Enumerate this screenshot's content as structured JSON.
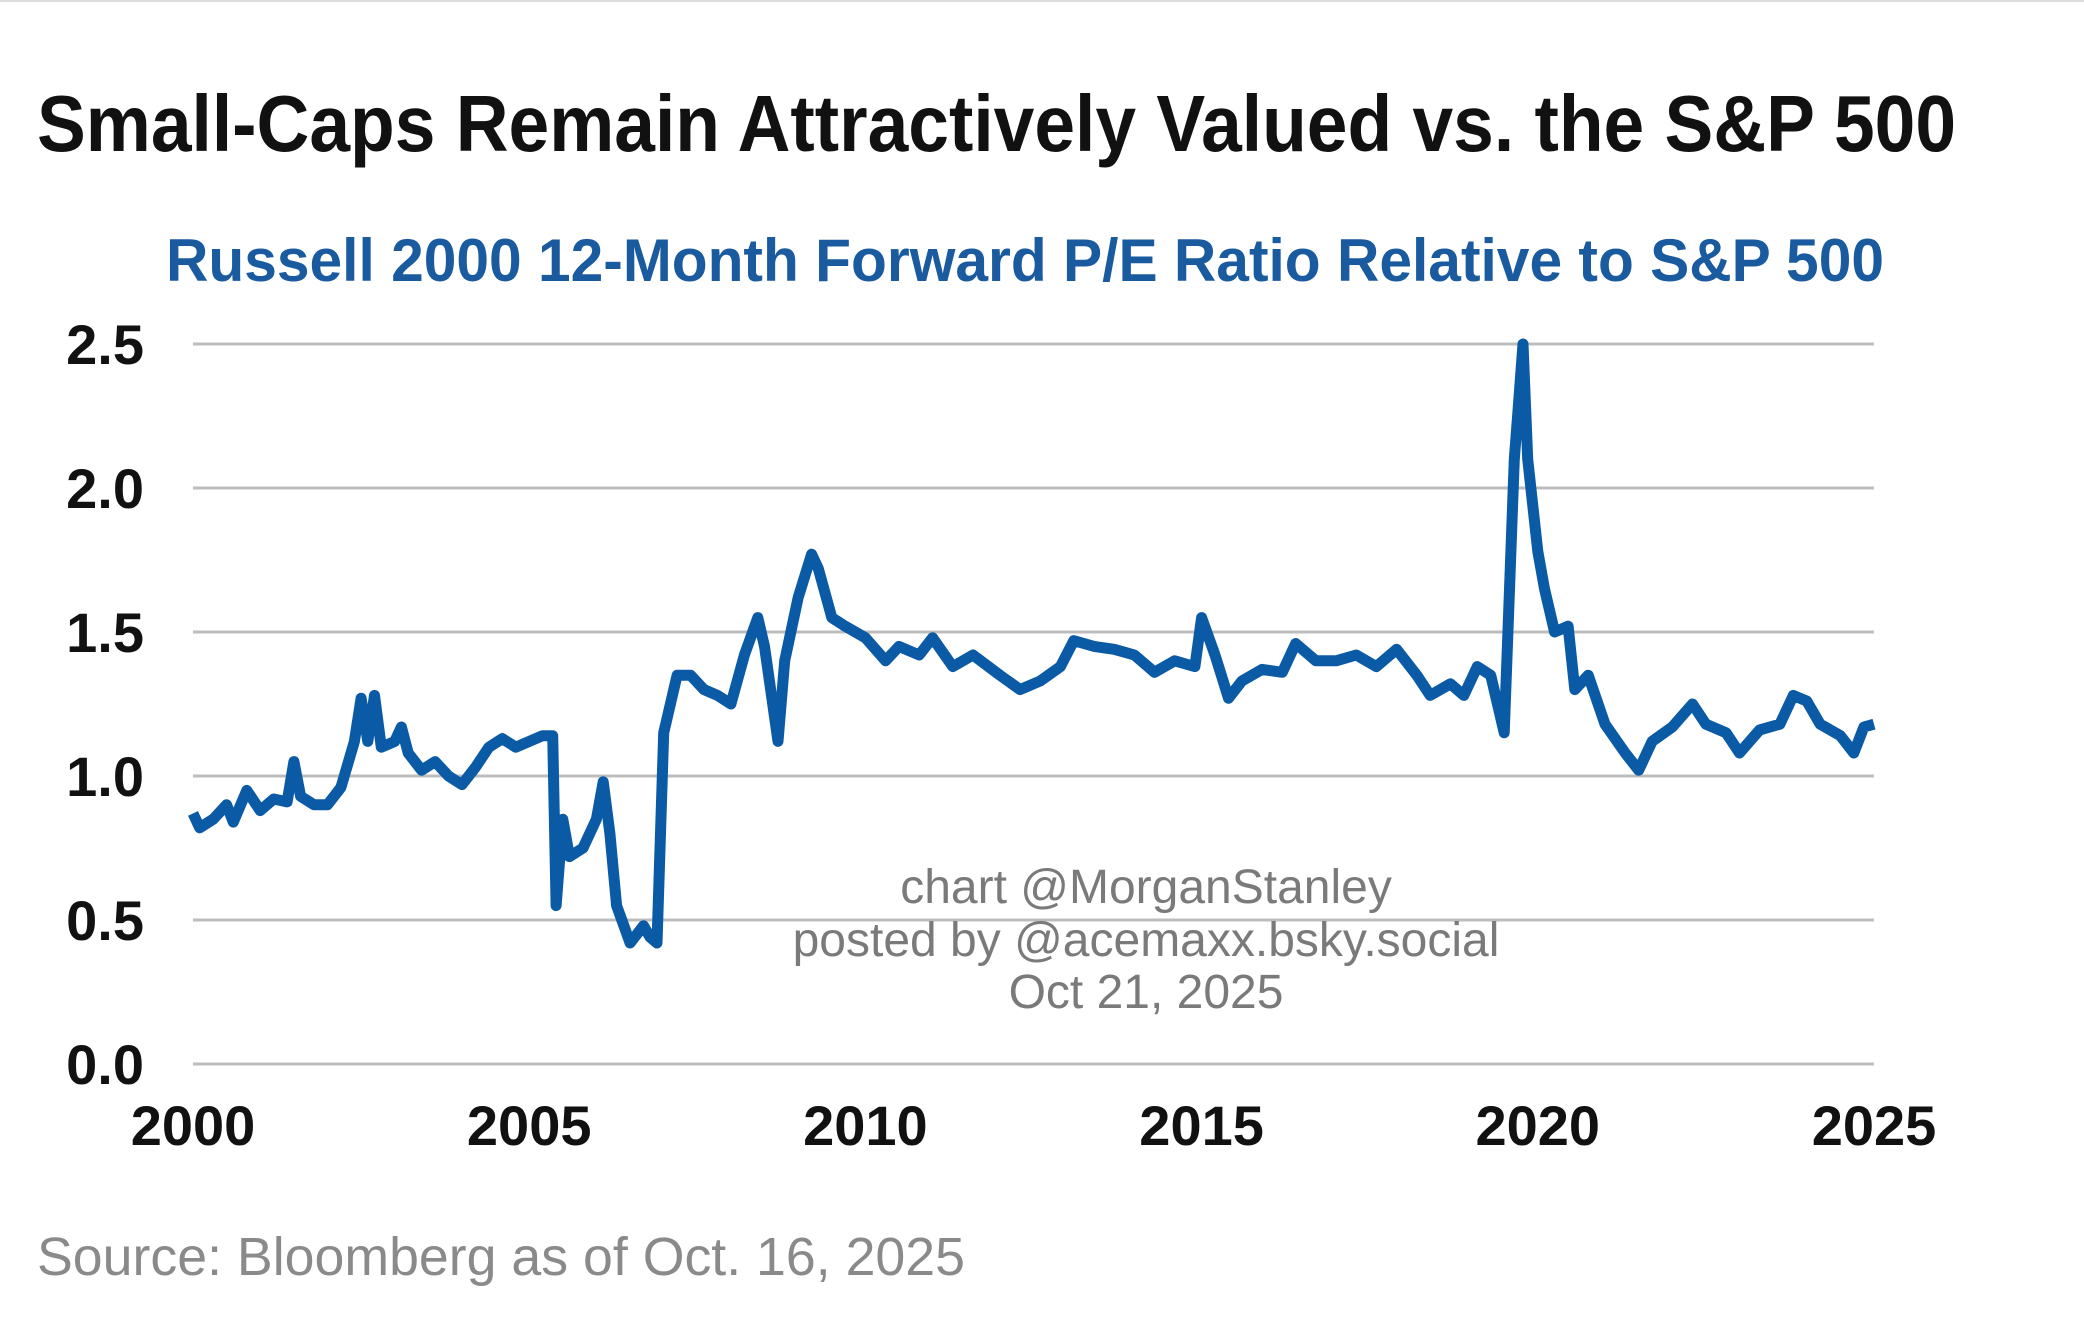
{
  "chart_data": {
    "type": "line",
    "title": "Small-Caps Remain Attractively Valued vs. the S&P 500",
    "subtitle": "Russell 2000 12-Month Forward P/E Ratio Relative to S&P 500",
    "xlabel": "",
    "ylabel": "",
    "xlim": [
      2000,
      2025
    ],
    "ylim": [
      0,
      2.5
    ],
    "grid": true,
    "line_color": "#0b5aa5",
    "x_ticks": [
      "2000",
      "2005",
      "2010",
      "2015",
      "2020",
      "2025"
    ],
    "y_ticks": [
      "0.0",
      "0.5",
      "1.0",
      "1.5",
      "2.0",
      "2.5"
    ],
    "series": [
      {
        "name": "Russell 2000 / S&P 500 forward P/E",
        "points": [
          [
            2000.0,
            0.87
          ],
          [
            2000.1,
            0.82
          ],
          [
            2000.3,
            0.85
          ],
          [
            2000.5,
            0.9
          ],
          [
            2000.6,
            0.84
          ],
          [
            2000.8,
            0.95
          ],
          [
            2001.0,
            0.88
          ],
          [
            2001.2,
            0.92
          ],
          [
            2001.4,
            0.91
          ],
          [
            2001.5,
            1.05
          ],
          [
            2001.6,
            0.93
          ],
          [
            2001.8,
            0.9
          ],
          [
            2002.0,
            0.9
          ],
          [
            2002.2,
            0.96
          ],
          [
            2002.4,
            1.12
          ],
          [
            2002.5,
            1.27
          ],
          [
            2002.6,
            1.12
          ],
          [
            2002.7,
            1.28
          ],
          [
            2002.8,
            1.1
          ],
          [
            2003.0,
            1.12
          ],
          [
            2003.1,
            1.17
          ],
          [
            2003.2,
            1.08
          ],
          [
            2003.4,
            1.02
          ],
          [
            2003.6,
            1.05
          ],
          [
            2003.8,
            1.0
          ],
          [
            2004.0,
            0.97
          ],
          [
            2004.2,
            1.03
          ],
          [
            2004.4,
            1.1
          ],
          [
            2004.6,
            1.13
          ],
          [
            2004.8,
            1.1
          ],
          [
            2005.0,
            1.12
          ],
          [
            2005.2,
            1.14
          ],
          [
            2005.35,
            1.14
          ],
          [
            2005.4,
            0.55
          ],
          [
            2005.5,
            0.85
          ],
          [
            2005.6,
            0.72
          ],
          [
            2005.8,
            0.75
          ],
          [
            2006.0,
            0.85
          ],
          [
            2006.1,
            0.98
          ],
          [
            2006.2,
            0.8
          ],
          [
            2006.3,
            0.55
          ],
          [
            2006.5,
            0.42
          ],
          [
            2006.7,
            0.48
          ],
          [
            2006.8,
            0.44
          ],
          [
            2006.9,
            0.42
          ],
          [
            2007.0,
            1.15
          ],
          [
            2007.2,
            1.35
          ],
          [
            2007.4,
            1.35
          ],
          [
            2007.6,
            1.3
          ],
          [
            2007.8,
            1.28
          ],
          [
            2008.0,
            1.25
          ],
          [
            2008.2,
            1.42
          ],
          [
            2008.4,
            1.55
          ],
          [
            2008.5,
            1.45
          ],
          [
            2008.7,
            1.12
          ],
          [
            2008.8,
            1.4
          ],
          [
            2009.0,
            1.62
          ],
          [
            2009.2,
            1.77
          ],
          [
            2009.3,
            1.72
          ],
          [
            2009.5,
            1.55
          ],
          [
            2009.7,
            1.52
          ],
          [
            2010.0,
            1.48
          ],
          [
            2010.3,
            1.4
          ],
          [
            2010.5,
            1.45
          ],
          [
            2010.8,
            1.42
          ],
          [
            2011.0,
            1.48
          ],
          [
            2011.3,
            1.38
          ],
          [
            2011.6,
            1.42
          ],
          [
            2012.0,
            1.35
          ],
          [
            2012.3,
            1.3
          ],
          [
            2012.6,
            1.33
          ],
          [
            2012.9,
            1.38
          ],
          [
            2013.1,
            1.47
          ],
          [
            2013.4,
            1.45
          ],
          [
            2013.7,
            1.44
          ],
          [
            2014.0,
            1.42
          ],
          [
            2014.3,
            1.36
          ],
          [
            2014.6,
            1.4
          ],
          [
            2014.9,
            1.38
          ],
          [
            2015.0,
            1.55
          ],
          [
            2015.2,
            1.42
          ],
          [
            2015.4,
            1.27
          ],
          [
            2015.6,
            1.33
          ],
          [
            2015.9,
            1.37
          ],
          [
            2016.2,
            1.36
          ],
          [
            2016.4,
            1.46
          ],
          [
            2016.7,
            1.4
          ],
          [
            2017.0,
            1.4
          ],
          [
            2017.3,
            1.42
          ],
          [
            2017.6,
            1.38
          ],
          [
            2017.9,
            1.44
          ],
          [
            2018.2,
            1.35
          ],
          [
            2018.4,
            1.28
          ],
          [
            2018.7,
            1.32
          ],
          [
            2018.9,
            1.28
          ],
          [
            2019.1,
            1.38
          ],
          [
            2019.3,
            1.35
          ],
          [
            2019.5,
            1.15
          ],
          [
            2019.65,
            2.1
          ],
          [
            2019.7,
            2.25
          ],
          [
            2019.78,
            2.5
          ],
          [
            2019.85,
            2.1
          ],
          [
            2020.0,
            1.78
          ],
          [
            2020.1,
            1.65
          ],
          [
            2020.25,
            1.5
          ],
          [
            2020.45,
            1.52
          ],
          [
            2020.55,
            1.3
          ],
          [
            2020.75,
            1.35
          ],
          [
            2021.0,
            1.18
          ],
          [
            2021.3,
            1.08
          ],
          [
            2021.5,
            1.02
          ],
          [
            2021.7,
            1.12
          ],
          [
            2022.0,
            1.17
          ],
          [
            2022.3,
            1.25
          ],
          [
            2022.5,
            1.18
          ],
          [
            2022.8,
            1.15
          ],
          [
            2023.0,
            1.08
          ],
          [
            2023.3,
            1.16
          ],
          [
            2023.6,
            1.18
          ],
          [
            2023.8,
            1.28
          ],
          [
            2024.0,
            1.26
          ],
          [
            2024.2,
            1.18
          ],
          [
            2024.5,
            1.14
          ],
          [
            2024.7,
            1.08
          ],
          [
            2024.85,
            1.17
          ],
          [
            2025.0,
            1.18
          ]
        ]
      }
    ],
    "source": "Source: Bloomberg as of Oct. 16, 2025",
    "annotations": [
      "chart @MorganStanley",
      "posted by @acemaxx.bsky.social",
      "Oct 21, 2025"
    ]
  }
}
